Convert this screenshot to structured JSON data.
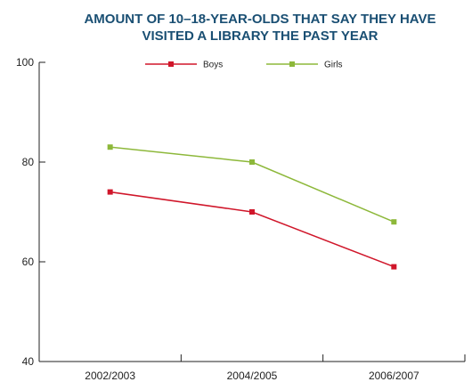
{
  "chart_data": {
    "type": "line",
    "title_lines": [
      "AMOUNT OF 10–18-YEAR-OLDS THAT SAY THEY HAVE",
      "VISITED A LIBRARY THE PAST YEAR"
    ],
    "categories": [
      "2002/2003",
      "2004/2005",
      "2006/2007"
    ],
    "y_ticks": [
      "100",
      "80",
      "60",
      "40"
    ],
    "ylim": [
      40,
      100
    ],
    "series": [
      {
        "name": "Boys",
        "values": [
          74,
          70,
          59
        ],
        "color": "#d0162a"
      },
      {
        "name": "Girls",
        "values": [
          83,
          80,
          68
        ],
        "color": "#8db83a"
      }
    ],
    "legend_position": "top",
    "grid": false
  }
}
